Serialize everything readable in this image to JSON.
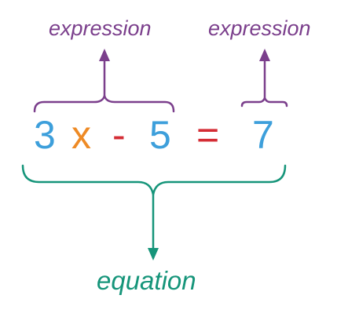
{
  "labels": {
    "expression_left": "expression",
    "expression_right": "expression",
    "equation": "equation"
  },
  "equation_tokens": {
    "coefficient": "3",
    "variable": "x",
    "minus": "-",
    "constant": "5",
    "equals": "=",
    "result": "7"
  },
  "colors": {
    "expression": "#7b3f8c",
    "equation": "#16957a",
    "number": "#3d9fdb",
    "variable": "#ee8a25",
    "operator": "#d42d35"
  }
}
